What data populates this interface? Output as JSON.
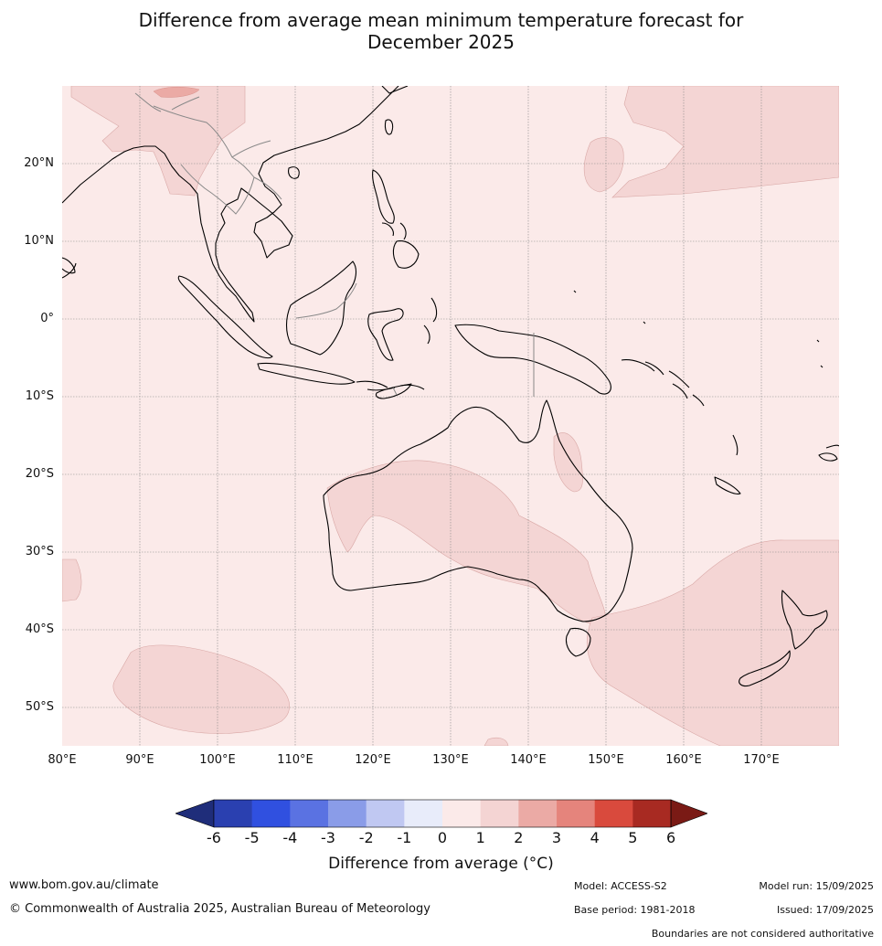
{
  "title_line1": "Difference from average mean minimum temperature forecast for",
  "title_line2": "December 2025",
  "lat_labels": [
    "20°N",
    "10°N",
    "0°",
    "10°S",
    "20°S",
    "30°S",
    "40°S",
    "50°S"
  ],
  "lon_labels": [
    "80°E",
    "90°E",
    "100°E",
    "110°E",
    "120°E",
    "130°E",
    "140°E",
    "150°E",
    "160°E",
    "170°E"
  ],
  "map_extent": {
    "lon_min": 80,
    "lon_max": 180,
    "lat_min": -55,
    "lat_max": 30
  },
  "colorbar": {
    "ticks": [
      "-6",
      "-5",
      "-4",
      "-3",
      "-2",
      "-1",
      "0",
      "1",
      "2",
      "3",
      "4",
      "5",
      "6"
    ],
    "colors": [
      "#1f2d7a",
      "#2a40b0",
      "#3050e0",
      "#5a72e2",
      "#8a9ce8",
      "#c0c8f2",
      "#e8ecfa",
      "#fbeae9",
      "#f4d4d3",
      "#ebaaa5",
      "#e5847c",
      "#d94a3d",
      "#a82a22",
      "#7a1a15"
    ],
    "label": "Difference from average (°C)"
  },
  "anomaly_fill_colors": {
    "band_0_1": "#fbeae9",
    "band_1_2": "#f4d5d4",
    "band_2_3": "#ebaaa5",
    "band_3_4": "#e5847c"
  },
  "footer": {
    "website": "www.bom.gov.au/climate",
    "copyright": "© Commonwealth of Australia 2025, Australian Bureau of Meteorology",
    "model": "Model: ACCESS-S2",
    "base_period": "Base period: 1981-2018",
    "model_run": "Model run: 15/09/2025",
    "issued": "Issued: 17/09/2025",
    "disclaimer": "Boundaries are not considered authoritative"
  }
}
